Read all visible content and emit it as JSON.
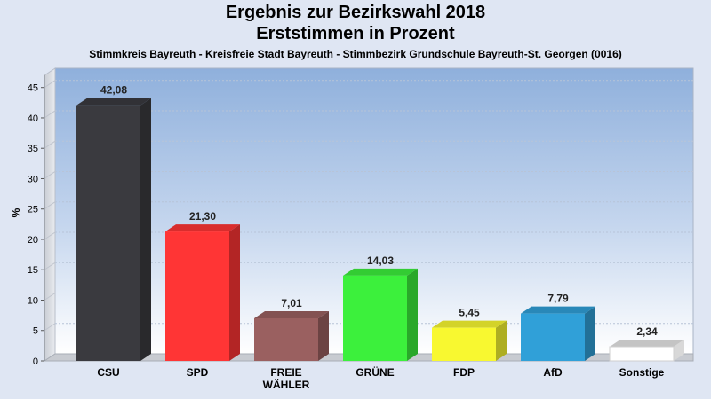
{
  "title_line1": "Ergebnis zur Bezirkswahl 2018",
  "title_line2": "Erststimmen in Prozent",
  "subtitle": "Stimmkreis Bayreuth - Kreisfreie Stadt Bayreuth - Stimmbezirk Grundschule Bayreuth-St. Georgen (0016)",
  "chart_data": {
    "type": "bar",
    "title": "Ergebnis zur Bezirkswahl 2018 / Erststimmen in Prozent",
    "subtitle": "Stimmkreis Bayreuth - Kreisfreie Stadt Bayreuth - Stimmbezirk Grundschule Bayreuth-St. Georgen (0016)",
    "xlabel": "",
    "ylabel": "%",
    "ylim": [
      0,
      47
    ],
    "yticks": [
      0,
      5,
      10,
      15,
      20,
      25,
      30,
      35,
      40,
      45
    ],
    "grid": true,
    "legend": "none",
    "categories": [
      "CSU",
      "SPD",
      "FREIE WÄHLER",
      "GRÜNE",
      "FDP",
      "AfD",
      "Sonstige"
    ],
    "category_lines": [
      [
        "CSU"
      ],
      [
        "SPD"
      ],
      [
        "FREIE",
        "WÄHLER"
      ],
      [
        "GRÜNE"
      ],
      [
        "FDP"
      ],
      [
        "AfD"
      ],
      [
        "Sonstige"
      ]
    ],
    "values": [
      42.08,
      21.3,
      7.01,
      14.03,
      5.45,
      7.79,
      2.34
    ],
    "value_labels": [
      "42,08",
      "21,30",
      "7,01",
      "14,03",
      "5,45",
      "7,79",
      "2,34"
    ],
    "colors": [
      "#3a3a3f",
      "#ff3535",
      "#9a6060",
      "#3cf03c",
      "#f8f830",
      "#30a0d8",
      "#ffffff"
    ]
  }
}
